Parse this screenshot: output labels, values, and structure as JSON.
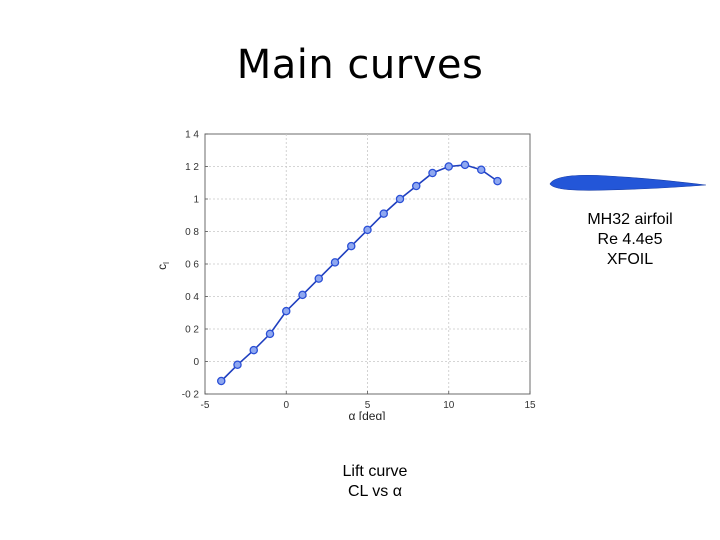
{
  "slide": {
    "title": "Main curves"
  },
  "notes": {
    "airfoil_lines": [
      "MH32 airfoil",
      "Re 4.4e5",
      "XFOIL"
    ],
    "caption_lines": [
      "Lift curve",
      "CL vs α"
    ]
  },
  "chart_data": {
    "type": "line",
    "xlabel": "α [deg]",
    "ylabel": "cl",
    "xlim": [
      -5,
      15
    ],
    "ylim": [
      -0.2,
      1.4
    ],
    "xticks": [
      -5,
      0,
      5,
      10,
      15
    ],
    "yticks": [
      -0.2,
      0,
      0.2,
      0.4,
      0.6,
      0.8,
      1,
      1.2,
      1.4
    ],
    "grid": true,
    "marker": "circle",
    "line_color": "#1f3fbf",
    "marker_color": "#2a4fd6",
    "series": [
      {
        "x": [
          -4,
          -3,
          -2,
          -1,
          0,
          1,
          2,
          3,
          4,
          5,
          6,
          7,
          8,
          9,
          10,
          11,
          12,
          13
        ],
        "y": [
          -0.12,
          -0.02,
          0.07,
          0.17,
          0.31,
          0.41,
          0.51,
          0.61,
          0.71,
          0.81,
          0.91,
          1.0,
          1.08,
          1.16,
          1.2,
          1.21,
          1.18,
          1.11
        ]
      }
    ]
  }
}
